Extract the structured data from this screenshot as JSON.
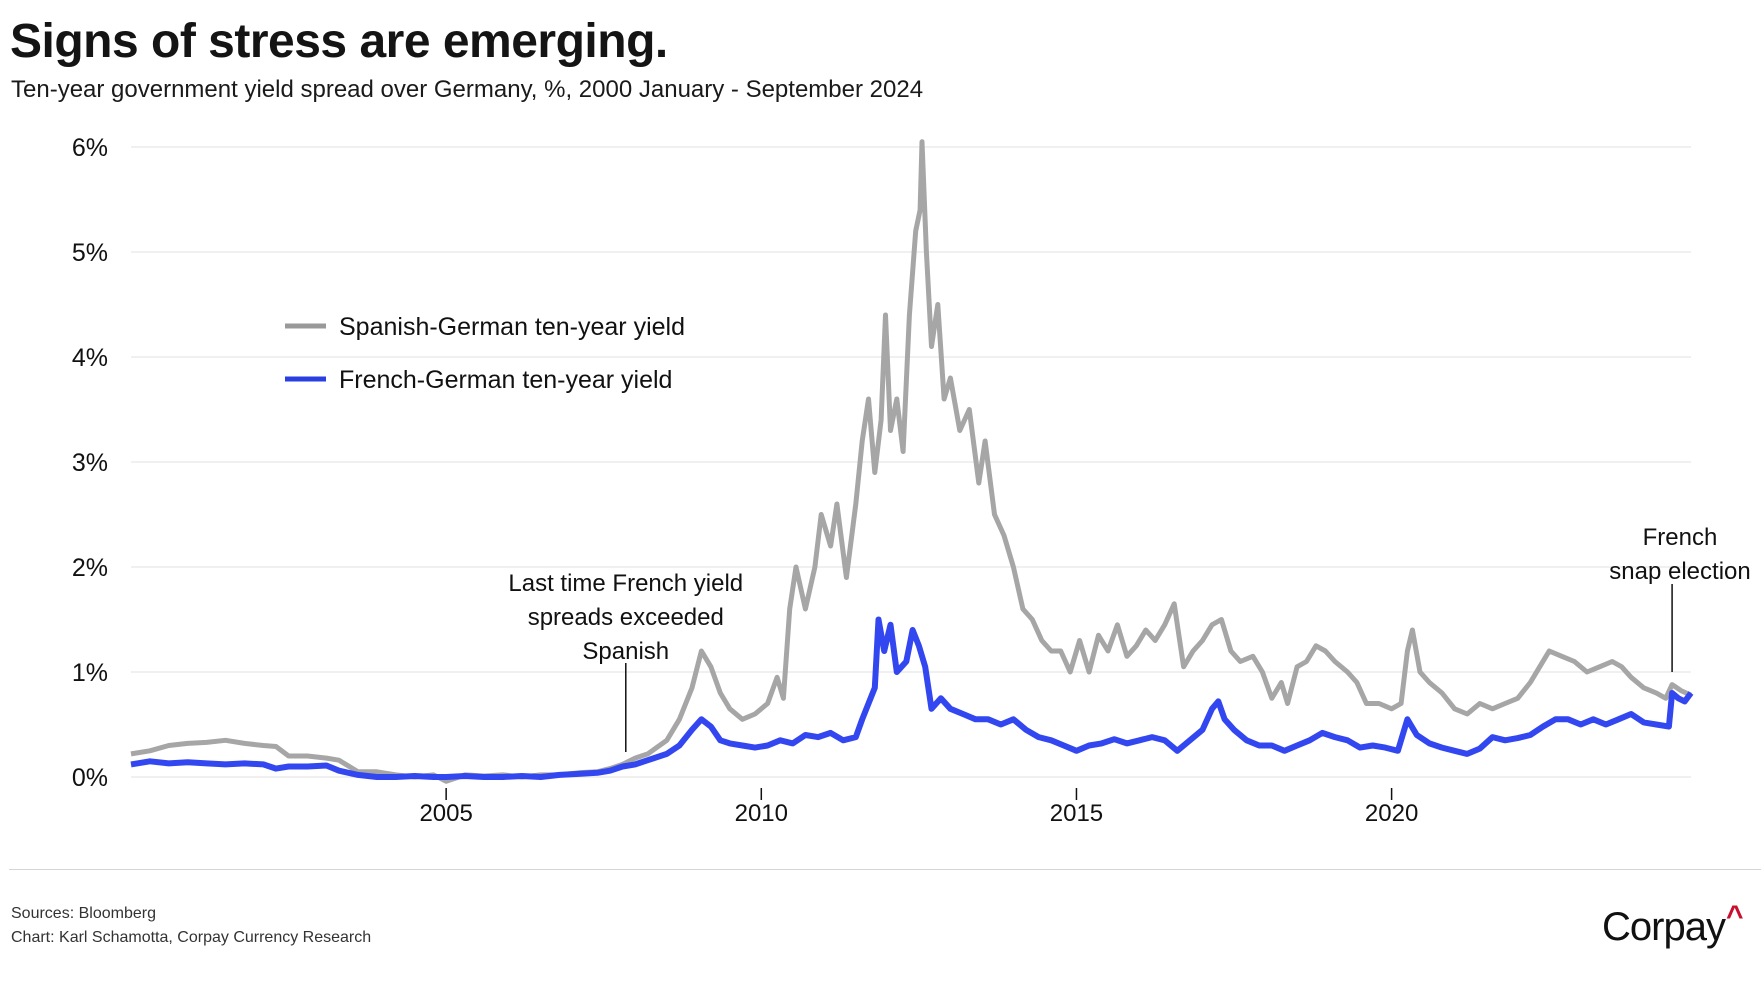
{
  "header": {
    "title": "Signs of stress are emerging.",
    "subtitle": "Ten-year government yield spread over Germany, %, 2000 January - September 2024"
  },
  "footer": {
    "sources": "Sources: Bloomberg",
    "credit": "Chart: Karl Schamotta, Corpay Currency Research",
    "logo_text": "Corpay",
    "logo_mark": "^",
    "logo_mark_color": "#c8102e"
  },
  "chart_data": {
    "type": "line",
    "title": "Signs of stress are emerging.",
    "subtitle": "Ten-year government yield spread over Germany, %, 2000 January - September 2024",
    "xlabel": "",
    "ylabel": "",
    "xlim": [
      2000.0,
      2024.75
    ],
    "ylim": [
      0,
      6
    ],
    "grid": true,
    "legend_position": "upper-left",
    "yticks": [
      0,
      1,
      2,
      3,
      4,
      5,
      6
    ],
    "ytick_labels": [
      "0%",
      "1%",
      "2%",
      "3%",
      "4%",
      "5%",
      "6%"
    ],
    "xticks": [
      2005,
      2010,
      2015,
      2020
    ],
    "xtick_labels": [
      "2005",
      "2010",
      "2015",
      "2020"
    ],
    "series": [
      {
        "name": "Spanish-German ten-year yield",
        "color": "#a6a6a6",
        "points": [
          [
            2000.0,
            0.22
          ],
          [
            2000.3,
            0.25
          ],
          [
            2000.6,
            0.3
          ],
          [
            2000.9,
            0.32
          ],
          [
            2001.2,
            0.33
          ],
          [
            2001.5,
            0.35
          ],
          [
            2001.8,
            0.32
          ],
          [
            2002.1,
            0.3
          ],
          [
            2002.3,
            0.29
          ],
          [
            2002.5,
            0.2
          ],
          [
            2002.8,
            0.2
          ],
          [
            2003.1,
            0.18
          ],
          [
            2003.3,
            0.16
          ],
          [
            2003.6,
            0.05
          ],
          [
            2003.9,
            0.05
          ],
          [
            2004.2,
            0.02
          ],
          [
            2004.5,
            0.0
          ],
          [
            2004.8,
            0.02
          ],
          [
            2005.0,
            -0.04
          ],
          [
            2005.3,
            0.02
          ],
          [
            2005.6,
            0.01
          ],
          [
            2005.9,
            0.02
          ],
          [
            2006.2,
            0.0
          ],
          [
            2006.5,
            0.02
          ],
          [
            2006.8,
            0.02
          ],
          [
            2007.1,
            0.04
          ],
          [
            2007.4,
            0.05
          ],
          [
            2007.6,
            0.08
          ],
          [
            2007.8,
            0.12
          ],
          [
            2008.0,
            0.18
          ],
          [
            2008.2,
            0.22
          ],
          [
            2008.5,
            0.35
          ],
          [
            2008.7,
            0.55
          ],
          [
            2008.9,
            0.85
          ],
          [
            2009.05,
            1.2
          ],
          [
            2009.2,
            1.05
          ],
          [
            2009.35,
            0.8
          ],
          [
            2009.5,
            0.65
          ],
          [
            2009.7,
            0.55
          ],
          [
            2009.9,
            0.6
          ],
          [
            2010.1,
            0.7
          ],
          [
            2010.25,
            0.95
          ],
          [
            2010.35,
            0.75
          ],
          [
            2010.45,
            1.6
          ],
          [
            2010.55,
            2.0
          ],
          [
            2010.7,
            1.6
          ],
          [
            2010.85,
            2.0
          ],
          [
            2010.95,
            2.5
          ],
          [
            2011.1,
            2.2
          ],
          [
            2011.2,
            2.6
          ],
          [
            2011.35,
            1.9
          ],
          [
            2011.5,
            2.6
          ],
          [
            2011.6,
            3.2
          ],
          [
            2011.7,
            3.6
          ],
          [
            2011.8,
            2.9
          ],
          [
            2011.9,
            3.4
          ],
          [
            2011.97,
            4.4
          ],
          [
            2012.05,
            3.3
          ],
          [
            2012.15,
            3.6
          ],
          [
            2012.25,
            3.1
          ],
          [
            2012.35,
            4.4
          ],
          [
            2012.45,
            5.2
          ],
          [
            2012.52,
            5.4
          ],
          [
            2012.55,
            6.05
          ],
          [
            2012.62,
            5.0
          ],
          [
            2012.7,
            4.1
          ],
          [
            2012.8,
            4.5
          ],
          [
            2012.9,
            3.6
          ],
          [
            2013.0,
            3.8
          ],
          [
            2013.15,
            3.3
          ],
          [
            2013.3,
            3.5
          ],
          [
            2013.45,
            2.8
          ],
          [
            2013.55,
            3.2
          ],
          [
            2013.7,
            2.5
          ],
          [
            2013.85,
            2.3
          ],
          [
            2014.0,
            2.0
          ],
          [
            2014.15,
            1.6
          ],
          [
            2014.3,
            1.5
          ],
          [
            2014.45,
            1.3
          ],
          [
            2014.6,
            1.2
          ],
          [
            2014.75,
            1.2
          ],
          [
            2014.9,
            1.0
          ],
          [
            2015.05,
            1.3
          ],
          [
            2015.2,
            1.0
          ],
          [
            2015.35,
            1.35
          ],
          [
            2015.5,
            1.2
          ],
          [
            2015.65,
            1.45
          ],
          [
            2015.8,
            1.15
          ],
          [
            2015.95,
            1.25
          ],
          [
            2016.1,
            1.4
          ],
          [
            2016.25,
            1.3
          ],
          [
            2016.4,
            1.45
          ],
          [
            2016.55,
            1.65
          ],
          [
            2016.7,
            1.05
          ],
          [
            2016.85,
            1.2
          ],
          [
            2017.0,
            1.3
          ],
          [
            2017.15,
            1.45
          ],
          [
            2017.3,
            1.5
          ],
          [
            2017.45,
            1.2
          ],
          [
            2017.6,
            1.1
          ],
          [
            2017.8,
            1.15
          ],
          [
            2017.95,
            1.0
          ],
          [
            2018.1,
            0.75
          ],
          [
            2018.25,
            0.9
          ],
          [
            2018.35,
            0.7
          ],
          [
            2018.5,
            1.05
          ],
          [
            2018.65,
            1.1
          ],
          [
            2018.8,
            1.25
          ],
          [
            2018.95,
            1.2
          ],
          [
            2019.1,
            1.1
          ],
          [
            2019.3,
            1.0
          ],
          [
            2019.45,
            0.9
          ],
          [
            2019.6,
            0.7
          ],
          [
            2019.8,
            0.7
          ],
          [
            2020.0,
            0.65
          ],
          [
            2020.15,
            0.7
          ],
          [
            2020.25,
            1.2
          ],
          [
            2020.33,
            1.4
          ],
          [
            2020.45,
            1.0
          ],
          [
            2020.6,
            0.9
          ],
          [
            2020.8,
            0.8
          ],
          [
            2021.0,
            0.65
          ],
          [
            2021.2,
            0.6
          ],
          [
            2021.4,
            0.7
          ],
          [
            2021.6,
            0.65
          ],
          [
            2021.8,
            0.7
          ],
          [
            2022.0,
            0.75
          ],
          [
            2022.2,
            0.9
          ],
          [
            2022.35,
            1.05
          ],
          [
            2022.5,
            1.2
          ],
          [
            2022.7,
            1.15
          ],
          [
            2022.9,
            1.1
          ],
          [
            2023.1,
            1.0
          ],
          [
            2023.3,
            1.05
          ],
          [
            2023.5,
            1.1
          ],
          [
            2023.65,
            1.05
          ],
          [
            2023.8,
            0.95
          ],
          [
            2024.0,
            0.85
          ],
          [
            2024.2,
            0.8
          ],
          [
            2024.35,
            0.75
          ],
          [
            2024.45,
            0.88
          ],
          [
            2024.6,
            0.82
          ],
          [
            2024.75,
            0.78
          ]
        ]
      },
      {
        "name": "French-German ten-year yield",
        "color": "#3347f0",
        "points": [
          [
            2000.0,
            0.12
          ],
          [
            2000.3,
            0.15
          ],
          [
            2000.6,
            0.13
          ],
          [
            2000.9,
            0.14
          ],
          [
            2001.2,
            0.13
          ],
          [
            2001.5,
            0.12
          ],
          [
            2001.8,
            0.13
          ],
          [
            2002.1,
            0.12
          ],
          [
            2002.3,
            0.08
          ],
          [
            2002.5,
            0.1
          ],
          [
            2002.8,
            0.1
          ],
          [
            2003.1,
            0.11
          ],
          [
            2003.3,
            0.06
          ],
          [
            2003.6,
            0.02
          ],
          [
            2003.9,
            0.0
          ],
          [
            2004.2,
            0.0
          ],
          [
            2004.5,
            0.01
          ],
          [
            2004.8,
            0.0
          ],
          [
            2005.0,
            0.0
          ],
          [
            2005.3,
            0.01
          ],
          [
            2005.6,
            0.0
          ],
          [
            2005.9,
            0.0
          ],
          [
            2006.2,
            0.01
          ],
          [
            2006.5,
            0.0
          ],
          [
            2006.8,
            0.02
          ],
          [
            2007.1,
            0.03
          ],
          [
            2007.4,
            0.04
          ],
          [
            2007.6,
            0.06
          ],
          [
            2007.8,
            0.1
          ],
          [
            2008.0,
            0.12
          ],
          [
            2008.2,
            0.16
          ],
          [
            2008.5,
            0.22
          ],
          [
            2008.7,
            0.3
          ],
          [
            2008.9,
            0.45
          ],
          [
            2009.05,
            0.55
          ],
          [
            2009.2,
            0.48
          ],
          [
            2009.35,
            0.35
          ],
          [
            2009.5,
            0.32
          ],
          [
            2009.7,
            0.3
          ],
          [
            2009.9,
            0.28
          ],
          [
            2010.1,
            0.3
          ],
          [
            2010.3,
            0.35
          ],
          [
            2010.5,
            0.32
          ],
          [
            2010.7,
            0.4
          ],
          [
            2010.9,
            0.38
          ],
          [
            2011.1,
            0.42
          ],
          [
            2011.3,
            0.35
          ],
          [
            2011.5,
            0.38
          ],
          [
            2011.6,
            0.55
          ],
          [
            2011.7,
            0.7
          ],
          [
            2011.8,
            0.85
          ],
          [
            2011.86,
            1.5
          ],
          [
            2011.95,
            1.2
          ],
          [
            2012.05,
            1.45
          ],
          [
            2012.15,
            1.0
          ],
          [
            2012.3,
            1.1
          ],
          [
            2012.4,
            1.4
          ],
          [
            2012.5,
            1.25
          ],
          [
            2012.6,
            1.05
          ],
          [
            2012.7,
            0.65
          ],
          [
            2012.85,
            0.75
          ],
          [
            2013.0,
            0.65
          ],
          [
            2013.2,
            0.6
          ],
          [
            2013.4,
            0.55
          ],
          [
            2013.6,
            0.55
          ],
          [
            2013.8,
            0.5
          ],
          [
            2014.0,
            0.55
          ],
          [
            2014.2,
            0.45
          ],
          [
            2014.4,
            0.38
          ],
          [
            2014.6,
            0.35
          ],
          [
            2014.8,
            0.3
          ],
          [
            2015.0,
            0.25
          ],
          [
            2015.2,
            0.3
          ],
          [
            2015.4,
            0.32
          ],
          [
            2015.6,
            0.36
          ],
          [
            2015.8,
            0.32
          ],
          [
            2016.0,
            0.35
          ],
          [
            2016.2,
            0.38
          ],
          [
            2016.4,
            0.35
          ],
          [
            2016.6,
            0.25
          ],
          [
            2016.8,
            0.35
          ],
          [
            2017.0,
            0.45
          ],
          [
            2017.15,
            0.65
          ],
          [
            2017.25,
            0.72
          ],
          [
            2017.35,
            0.55
          ],
          [
            2017.5,
            0.45
          ],
          [
            2017.7,
            0.35
          ],
          [
            2017.9,
            0.3
          ],
          [
            2018.1,
            0.3
          ],
          [
            2018.3,
            0.25
          ],
          [
            2018.5,
            0.3
          ],
          [
            2018.7,
            0.35
          ],
          [
            2018.9,
            0.42
          ],
          [
            2019.1,
            0.38
          ],
          [
            2019.3,
            0.35
          ],
          [
            2019.5,
            0.28
          ],
          [
            2019.7,
            0.3
          ],
          [
            2019.9,
            0.28
          ],
          [
            2020.1,
            0.25
          ],
          [
            2020.25,
            0.55
          ],
          [
            2020.4,
            0.4
          ],
          [
            2020.6,
            0.32
          ],
          [
            2020.8,
            0.28
          ],
          [
            2021.0,
            0.25
          ],
          [
            2021.2,
            0.22
          ],
          [
            2021.4,
            0.27
          ],
          [
            2021.6,
            0.38
          ],
          [
            2021.8,
            0.35
          ],
          [
            2022.0,
            0.37
          ],
          [
            2022.2,
            0.4
          ],
          [
            2022.4,
            0.48
          ],
          [
            2022.6,
            0.55
          ],
          [
            2022.8,
            0.55
          ],
          [
            2023.0,
            0.5
          ],
          [
            2023.2,
            0.55
          ],
          [
            2023.4,
            0.5
          ],
          [
            2023.6,
            0.55
          ],
          [
            2023.8,
            0.6
          ],
          [
            2024.0,
            0.52
          ],
          [
            2024.2,
            0.5
          ],
          [
            2024.4,
            0.48
          ],
          [
            2024.45,
            0.8
          ],
          [
            2024.55,
            0.75
          ],
          [
            2024.65,
            0.72
          ],
          [
            2024.75,
            0.8
          ]
        ]
      }
    ],
    "annotations": [
      {
        "text_lines": [
          "Last time French yield",
          "spreads exceeded",
          "Spanish"
        ],
        "x": 2007.85
      },
      {
        "text_lines": [
          "French",
          "snap election"
        ],
        "x": 2024.45
      }
    ]
  }
}
